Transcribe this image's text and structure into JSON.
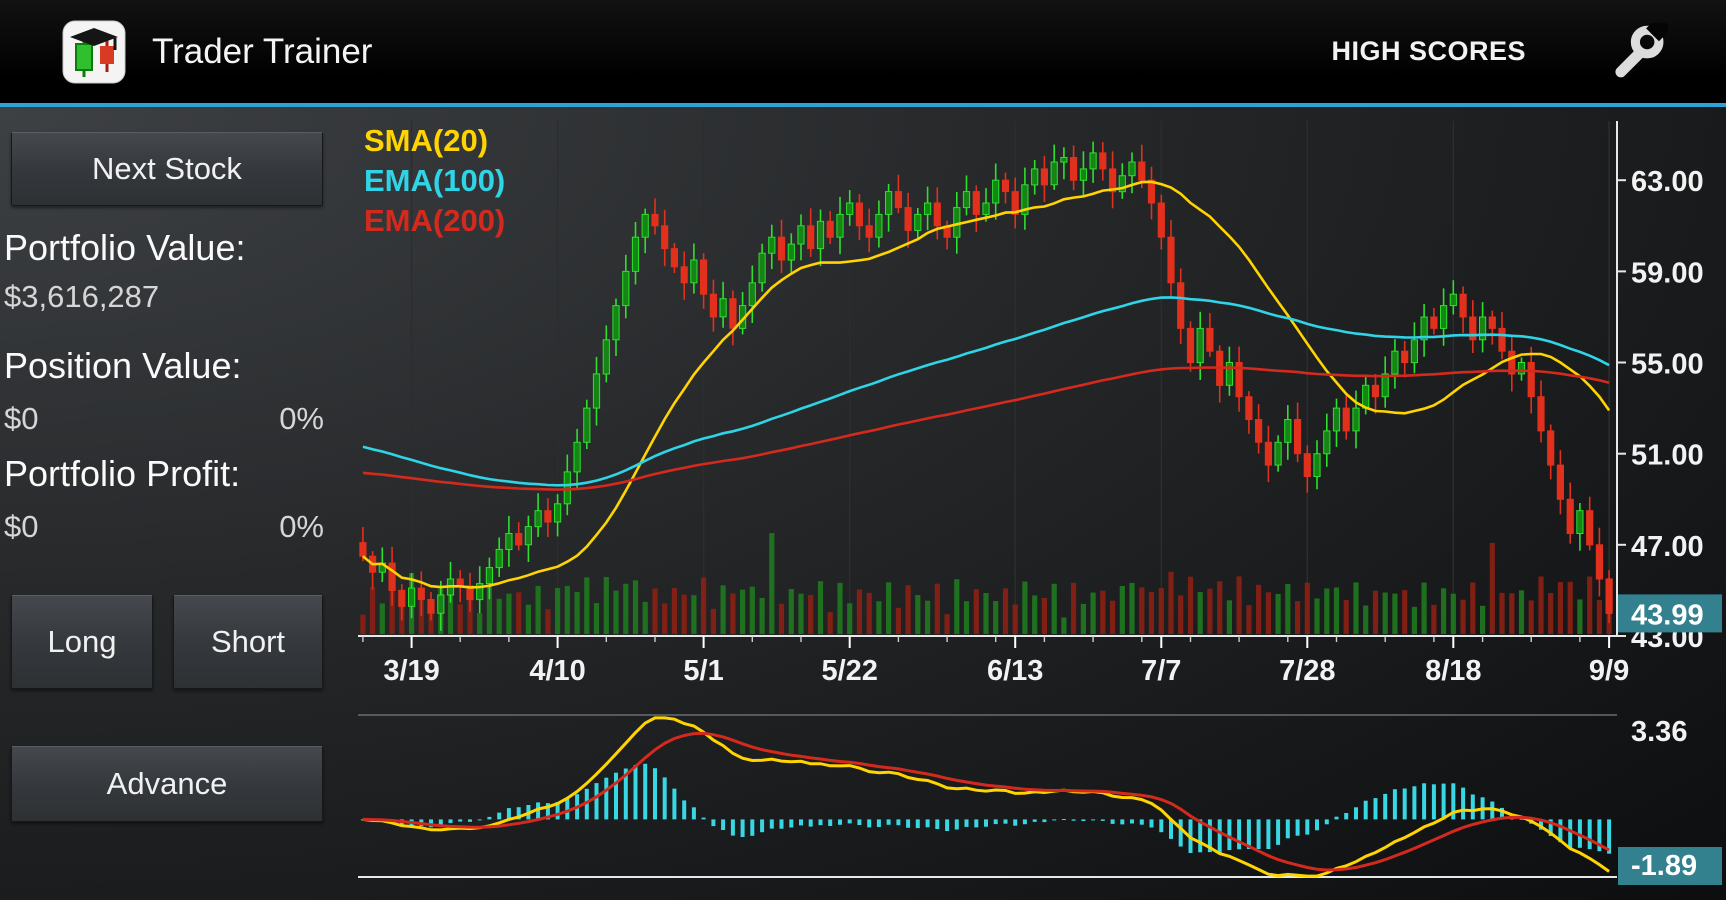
{
  "app": {
    "title": "Trader Trainer",
    "high_scores_label": "HIGH SCORES",
    "accent_color": "#2da2d8"
  },
  "sidebar": {
    "next_stock_button": "Next Stock",
    "portfolio_value_label": "Portfolio Value:",
    "portfolio_value": "$3,616,287",
    "position_value_label": "Position Value:",
    "position_value": "$0",
    "position_percent": "0%",
    "portfolio_profit_label": "Portfolio Profit:",
    "portfolio_profit": "$0",
    "portfolio_profit_percent": "0%",
    "long_button": "Long",
    "short_button": "Short",
    "advance_button": "Advance"
  },
  "chart_data": {
    "type": "candlestick",
    "legend": [
      {
        "label": "SMA(20)",
        "color": "#ffd400"
      },
      {
        "label": "EMA(100)",
        "color": "#2fd4e6"
      },
      {
        "label": "EMA(200)",
        "color": "#d42a1e"
      }
    ],
    "y_axis_labels": [
      "63.00",
      "59.00",
      "55.00",
      "51.00",
      "47.00",
      "43.00"
    ],
    "y_axis_values": [
      63,
      59,
      55,
      51,
      47,
      43
    ],
    "price_range": [
      43.0,
      65.6
    ],
    "current_price": 43.99,
    "current_price_label": "43.99",
    "x_labels": [
      "3/19",
      "4/10",
      "5/1",
      "5/22",
      "6/13",
      "7/7",
      "7/28",
      "8/18",
      "9/9"
    ],
    "x_label_indices": [
      5,
      20,
      35,
      50,
      67,
      82,
      97,
      112,
      128
    ],
    "closes": [
      46.5,
      45.8,
      46.2,
      45.0,
      44.3,
      45.1,
      44.6,
      44.0,
      44.8,
      45.5,
      45.2,
      44.6,
      45.3,
      46.0,
      46.8,
      47.5,
      47.0,
      47.8,
      48.5,
      48.0,
      48.8,
      50.2,
      51.5,
      53.0,
      54.5,
      56.0,
      57.5,
      59.0,
      60.5,
      61.5,
      61.0,
      60.0,
      59.2,
      58.5,
      59.5,
      58.0,
      57.0,
      57.8,
      56.5,
      57.5,
      58.5,
      59.8,
      60.5,
      59.5,
      60.2,
      61.0,
      60.0,
      61.2,
      60.5,
      61.5,
      62.0,
      61.0,
      60.5,
      61.5,
      62.5,
      61.8,
      60.8,
      61.5,
      62.0,
      61.0,
      60.5,
      61.8,
      62.5,
      61.5,
      62.0,
      63.0,
      62.5,
      61.5,
      62.8,
      63.5,
      62.8,
      63.8,
      64.0,
      63.0,
      63.5,
      64.2,
      63.5,
      62.5,
      63.2,
      63.8,
      63.0,
      62.0,
      60.5,
      58.5,
      56.5,
      55.0,
      56.5,
      55.5,
      54.0,
      55.0,
      53.5,
      52.5,
      51.5,
      50.5,
      51.5,
      52.5,
      51.0,
      50.0,
      51.0,
      52.0,
      53.0,
      52.0,
      53.0,
      54.0,
      53.5,
      54.5,
      55.5,
      55.0,
      56.0,
      57.0,
      56.5,
      57.5,
      58.0,
      57.0,
      56.0,
      57.0,
      56.5,
      55.5,
      54.5,
      55.0,
      53.5,
      52.0,
      50.5,
      49.0,
      47.5,
      48.5,
      47.0,
      45.5,
      43.99
    ],
    "colors": {
      "up": "#2ce02c",
      "up_fill": "#158515",
      "down": "#e1301c",
      "volume_up": "#1f7a1f",
      "volume_down": "#8c2014",
      "tag_bg": "#33808f",
      "grid": "#2b2d2f"
    },
    "indicator": {
      "type": "macd",
      "max": 3.36,
      "min": -1.89,
      "max_label": "3.36",
      "min_label": "-1.89",
      "histogram_color": "#37d8e4",
      "macd_color": "#ffd400",
      "signal_color": "#d42a1e"
    }
  }
}
